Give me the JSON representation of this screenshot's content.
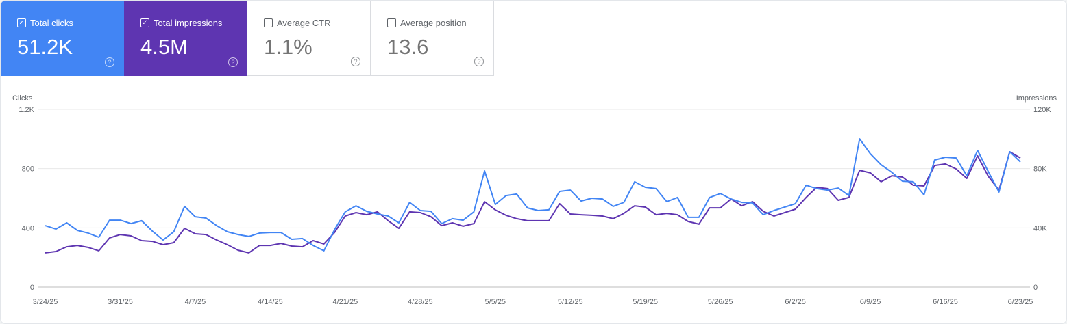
{
  "cards": [
    {
      "label": "Total clicks",
      "value": "51.2K",
      "checked": true,
      "color": "#4285f4"
    },
    {
      "label": "Total impressions",
      "value": "4.5M",
      "checked": true,
      "color": "#5e35b1"
    },
    {
      "label": "Average CTR",
      "value": "1.1%",
      "checked": false
    },
    {
      "label": "Average position",
      "value": "13.6",
      "checked": false
    }
  ],
  "help_icon": "question-circle-icon",
  "chart_data": {
    "type": "line",
    "ylabel_left": "Clicks",
    "ylabel_right": "Impressions",
    "ylim_left": [
      0,
      1200
    ],
    "ylim_right": [
      0,
      120000
    ],
    "yticks_left": [
      "0",
      "400",
      "800",
      "1.2K"
    ],
    "yticks_right": [
      "0",
      "40K",
      "80K",
      "120K"
    ],
    "xticks": [
      "3/24/25",
      "3/31/25",
      "4/7/25",
      "4/14/25",
      "4/21/25",
      "4/28/25",
      "5/5/25",
      "5/12/25",
      "5/19/25",
      "5/26/25",
      "6/2/25",
      "6/9/25",
      "6/16/25",
      "6/23/25"
    ],
    "x_range": [
      "2025-03-24",
      "2025-06-23"
    ],
    "grid": true,
    "series": [
      {
        "name": "Clicks",
        "axis": "left",
        "color": "#4285f4",
        "values": [
          415,
          392,
          434,
          383,
          365,
          337,
          452,
          452,
          429,
          448,
          378,
          318,
          374,
          545,
          475,
          466,
          415,
          374,
          355,
          342,
          365,
          369,
          369,
          323,
          328,
          281,
          245,
          388,
          508,
          549,
          512,
          494,
          480,
          434,
          572,
          517,
          512,
          429,
          462,
          452,
          508,
          785,
          558,
          618,
          628,
          535,
          517,
          522,
          646,
          655,
          581,
          600,
          595,
          545,
          572,
          711,
          674,
          665,
          577,
          605,
          471,
          471,
          605,
          632,
          595,
          572,
          568,
          489,
          517,
          540,
          563,
          688,
          665,
          655,
          669,
          618,
          1001,
          900,
          826,
          775,
          715,
          711,
          623,
          858,
          877,
          872,
          752,
          923,
          780,
          642,
          914,
          845
        ]
      },
      {
        "name": "Impressions",
        "axis": "right",
        "color": "#5e35b1",
        "values": [
          23100,
          24000,
          27200,
          28100,
          26800,
          24500,
          33200,
          35500,
          34600,
          31400,
          30900,
          28600,
          30000,
          39700,
          36000,
          35500,
          31800,
          28600,
          24900,
          23100,
          28100,
          28100,
          29500,
          27700,
          27200,
          31400,
          29100,
          36900,
          48000,
          50300,
          48900,
          50800,
          44800,
          39700,
          50800,
          50300,
          47500,
          41500,
          43400,
          41100,
          42900,
          57700,
          52100,
          48500,
          46200,
          44800,
          44800,
          44800,
          56300,
          49400,
          48900,
          48500,
          48000,
          46200,
          49800,
          54900,
          54000,
          48900,
          49800,
          48900,
          44300,
          42500,
          53500,
          53500,
          59500,
          54900,
          57700,
          51200,
          48000,
          50300,
          52600,
          60500,
          67400,
          66500,
          58600,
          60500,
          78900,
          77100,
          71100,
          75200,
          74300,
          68800,
          68300,
          82100,
          83100,
          79800,
          73400,
          88600,
          74800,
          65500,
          91400,
          87200
        ]
      }
    ]
  }
}
